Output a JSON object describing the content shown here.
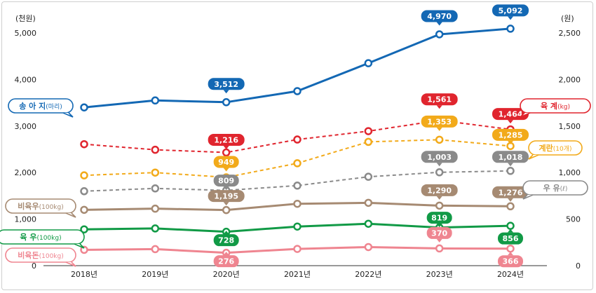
{
  "chart_data": {
    "type": "line",
    "left_unit": "(천원)",
    "right_unit": "(원)",
    "x": [
      "2018년",
      "2019년",
      "2020년",
      "2021년",
      "2022년",
      "2023년",
      "2024년"
    ],
    "left_axis": {
      "ylim": [
        0,
        5000
      ],
      "ticks": [
        "0",
        "1,000",
        "2,000",
        "3,000",
        "4,000",
        "5,000"
      ]
    },
    "right_axis": {
      "ylim": [
        0,
        2500
      ],
      "ticks": [
        "0",
        "500",
        "1,000",
        "1,500",
        "2,000",
        "2,500"
      ]
    },
    "grid": false,
    "series": [
      {
        "name": "송 아 지",
        "unit": "(마리)",
        "axis": "left",
        "style": "solid",
        "color": "#1368b4",
        "values": [
          3400,
          3550,
          3512,
          3750,
          4350,
          4970,
          5092
        ],
        "labels": [
          null,
          null,
          "3,512",
          null,
          null,
          "4,970",
          "5,092"
        ]
      },
      {
        "name": "육    계",
        "unit": "(kg)",
        "axis": "right",
        "style": "dashed",
        "color": "#e0252e",
        "values": [
          1305,
          1245,
          1216,
          1355,
          1445,
          1561,
          1464
        ],
        "labels": [
          null,
          null,
          "1,216",
          null,
          null,
          "1,561",
          "1,464"
        ]
      },
      {
        "name": "계란",
        "unit": "(10개)",
        "axis": "right",
        "style": "dashed",
        "color": "#f2aa1a",
        "values": [
          970,
          1000,
          949,
          1100,
          1330,
          1353,
          1285
        ],
        "labels": [
          null,
          null,
          "949",
          null,
          null,
          "1,353",
          "1,285"
        ]
      },
      {
        "name": "우    유",
        "unit": "(ℓ)",
        "axis": "right",
        "style": "dashed",
        "color": "#8a8a8a",
        "values": [
          800,
          830,
          809,
          860,
          955,
          1003,
          1018
        ],
        "labels": [
          null,
          null,
          "809",
          null,
          null,
          "1,003",
          "1,018"
        ]
      },
      {
        "name": "비육우",
        "unit": "(100kg)",
        "axis": "left",
        "style": "solid",
        "color": "#a68a72",
        "values": [
          1200,
          1225,
          1195,
          1330,
          1350,
          1290,
          1276
        ],
        "labels": [
          null,
          null,
          "1,195",
          null,
          null,
          "1,290",
          "1,276"
        ]
      },
      {
        "name": "육    우",
        "unit": "(100kg)",
        "axis": "left",
        "style": "solid",
        "color": "#119a46",
        "values": [
          780,
          800,
          728,
          840,
          900,
          819,
          856
        ],
        "labels": [
          null,
          null,
          "728",
          null,
          null,
          "819",
          "856"
        ]
      },
      {
        "name": "비육돈",
        "unit": "(100kg)",
        "axis": "left",
        "style": "solid",
        "color": "#ef8590",
        "values": [
          340,
          355,
          276,
          360,
          400,
          370,
          366
        ],
        "labels": [
          null,
          null,
          "276",
          null,
          null,
          "370",
          "366"
        ]
      }
    ]
  }
}
